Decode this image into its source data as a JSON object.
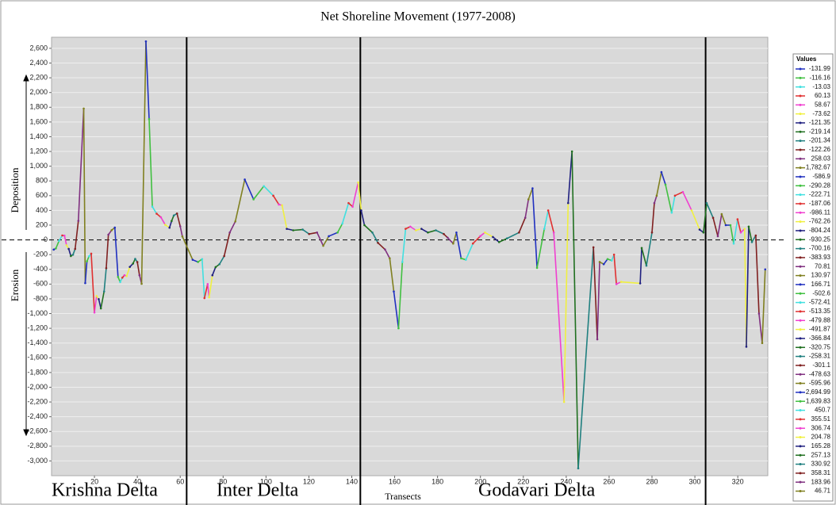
{
  "chart_data": {
    "type": "line",
    "title": "Net Shoreline Movement (1977-2008)",
    "x_label": "Transects",
    "y_labels": {
      "up": "Deposition",
      "down": "Erosion"
    },
    "annotations": [
      "Krishna Delta",
      "Inter Delta",
      "Godavari Delta"
    ],
    "boundaries": [
      63,
      144,
      305
    ],
    "reference_line": 0,
    "xlim": [
      0,
      334
    ],
    "ylim": [
      -3200,
      2750
    ],
    "xticks": [
      20,
      40,
      60,
      80,
      100,
      120,
      140,
      160,
      180,
      200,
      220,
      240,
      260,
      280,
      300,
      320
    ],
    "yticks": [
      {
        "value": 2600,
        "label": "2,600"
      },
      {
        "value": 2400,
        "label": "2,400"
      },
      {
        "value": 2200,
        "label": "2,200"
      },
      {
        "value": 2000,
        "label": "2,000"
      },
      {
        "value": 1800,
        "label": "1,800"
      },
      {
        "value": 1600,
        "label": "1,600"
      },
      {
        "value": 1400,
        "label": "1,400"
      },
      {
        "value": 1200,
        "label": "1,200"
      },
      {
        "value": 1000,
        "label": "1,000"
      },
      800,
      600,
      400,
      200,
      0,
      -200,
      -400,
      -600,
      -800,
      {
        "value": -1000,
        "label": "-1,000"
      },
      {
        "value": -1200,
        "label": "-1,200"
      },
      {
        "value": -1400,
        "label": "-1,400"
      },
      {
        "value": -1600,
        "label": "-1,600"
      },
      {
        "value": -1800,
        "label": "-1,800"
      },
      {
        "value": -2000,
        "label": "-2,000"
      },
      {
        "value": -2200,
        "label": "-2,200"
      },
      {
        "value": -2400,
        "label": "-2,400"
      },
      {
        "value": -2600,
        "label": "-2,600"
      },
      {
        "value": -2800,
        "label": "-2,800"
      },
      {
        "value": -3000,
        "label": "-3,000"
      }
    ],
    "grid": true,
    "palette": [
      "#2030c0",
      "#40c040",
      "#40e0e0",
      "#e03030",
      "#f040d0",
      "#f0f040",
      "#202080",
      "#207020",
      "#208080",
      "#802020",
      "#803080",
      "#808020"
    ],
    "legend": {
      "title": "Values",
      "labels": [
        "-131.99",
        "-116.16",
        "-13.03",
        "60.13",
        "58.67",
        "-73.62",
        "-121.35",
        "-219.14",
        "-201.34",
        "-122.26",
        "258.03",
        "1,782.67",
        "-586.9",
        "-290.28",
        "-222.71",
        "-187.06",
        "-986.11",
        "-762.26",
        "-804.24",
        "-930.25",
        "-700.16",
        "-383.93",
        "70.81",
        "130.97",
        "166.71",
        "-502.6",
        "-572.41",
        "-513.35",
        "-479.88",
        "-491.87",
        "-366.84",
        "-320.75",
        "-258.31",
        "-301.1",
        "-478.63",
        "-595.96",
        "2,694.99",
        "1,639.83",
        "450.7",
        "355.51",
        "306.74",
        "204.78",
        "165.28",
        "257.13",
        "330.92",
        "358.31",
        "183.96",
        "46.71"
      ]
    },
    "x": [
      1,
      2,
      3.5,
      5,
      6,
      7,
      8,
      9,
      10,
      11,
      12.5,
      15,
      15.7,
      16.5,
      17.5,
      18.5,
      20,
      21,
      22,
      23,
      24.5,
      25.5,
      26.5,
      28,
      29.5,
      31,
      32,
      33,
      34,
      35,
      36.5,
      38,
      39,
      40,
      41,
      42,
      44,
      45.5,
      47,
      49,
      51,
      53,
      55,
      56,
      57,
      58.5,
      60,
      61,
      65.8,
      68.3,
      70.2,
      71.3,
      72.8,
      73.5,
      75,
      76.5,
      78.3,
      80.5,
      83.1,
      85.7,
      90.1,
      94.2,
      99,
      103.4,
      106,
      107.5,
      109.7,
      112.7,
      117.1,
      120.1,
      123.8,
      126.7,
      129.3,
      133.4,
      135.6,
      138.5,
      140.4,
      143,
      144.4,
      145.9,
      149.6,
      152.2,
      155.5,
      157.7,
      159.6,
      161.8,
      163.6,
      165.1,
      167.3,
      169.9,
      172.5,
      175.5,
      179.2,
      182.9,
      184.7,
      187.3,
      188.8,
      191,
      193.2,
      196.5,
      199.9,
      202.1,
      205.8,
      208.7,
      212.4,
      218,
      220.9,
      222.4,
      224.3,
      226.4,
      229.8,
      231.6,
      234.2,
      239,
      240.9,
      242.7,
      245.6,
      252.7,
      254.5,
      255.6,
      257.5,
      259.3,
      261.2,
      262.3,
      263.4,
      265.6,
      274.5,
      275.2,
      277.4,
      280,
      281.1,
      282.2,
      284.4,
      286.3,
      289.2,
      290.7,
      294.4,
      298.5,
      302.2,
      304,
      305.5,
      308.5,
      310.7,
      312.5,
      314.4,
      316.6,
      318.1,
      319.9,
      321.4,
      323.2,
      324,
      325.1,
      326.6,
      328.4,
      329.9,
      331.4,
      332.8
    ],
    "series": [
      {
        "values": [
          -131.99,
          -116.16,
          -13.03,
          60.13,
          58.67,
          -73.62,
          -121.35,
          -219.14,
          -201.34,
          -122.26,
          258.03,
          1782.67,
          -586.9,
          -290.28,
          -222.71,
          -187.06,
          -986.11,
          -762.26,
          -804.24,
          -930.25,
          -700.16,
          -383.93,
          70.81,
          130.97,
          166.71,
          -502.6,
          -572.41,
          -513.35,
          -479.88,
          -491.87,
          -366.84,
          -320.75,
          -258.31,
          -301.1,
          -478.63,
          -595.96,
          2694.99,
          1639.83,
          450.7,
          355.51,
          306.74,
          204.78,
          165.28,
          257.13,
          330.92,
          358.31,
          183.96,
          46.71,
          -270,
          -300,
          -260,
          -790,
          -600,
          -780,
          -480,
          -370,
          -330,
          -220,
          100,
          250,
          820,
          550,
          730,
          600,
          480,
          470,
          150,
          130,
          140,
          80,
          100,
          -80,
          50,
          100,
          220,
          500,
          450,
          780,
          400,
          200,
          100,
          -40,
          -130,
          -250,
          -700,
          -1200,
          -300,
          150,
          180,
          130,
          150,
          100,
          130,
          80,
          30,
          -50,
          100,
          -250,
          -270,
          -50,
          50,
          100,
          40,
          -30,
          20,
          100,
          300,
          550,
          700,
          -380,
          150,
          400,
          100,
          -2200,
          500,
          1200,
          -3100,
          -100,
          -1350,
          -300,
          -330,
          -260,
          -280,
          -200,
          -600,
          -570,
          -590,
          -110,
          -350,
          100,
          500,
          600,
          920,
          750,
          370,
          600,
          650,
          400,
          140,
          100,
          500,
          300,
          50,
          350,
          200,
          200,
          -50,
          280,
          100,
          150,
          -1450,
          180,
          -30,
          60,
          -1000,
          -1400,
          -400
        ]
      }
    ]
  }
}
